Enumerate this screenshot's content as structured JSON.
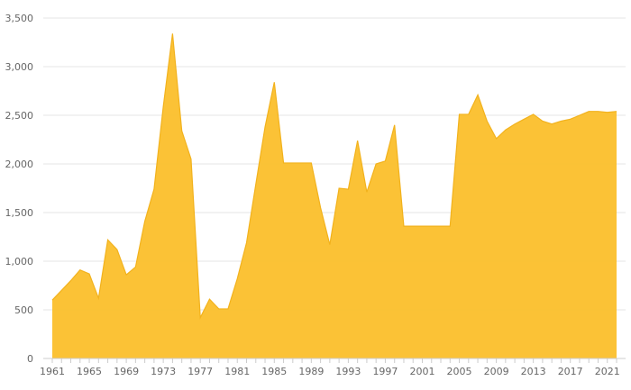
{
  "colors": {
    "area_fill": "#FBBF2B",
    "area_stroke": "#F2B21D",
    "grid": "#e6e6e6",
    "axis": "#cccccc",
    "tick_text": "#666666",
    "background": "#ffffff"
  },
  "chart_data": {
    "type": "area",
    "title": "",
    "xlabel": "",
    "ylabel": "",
    "grid": true,
    "legend": "none",
    "xlim": [
      1961,
      2022
    ],
    "ylim": [
      0,
      3500
    ],
    "y_ticks": [
      0,
      500,
      1000,
      1500,
      2000,
      2500,
      3000,
      3500
    ],
    "y_tick_labels": [
      "0",
      "500",
      "1,000",
      "1,500",
      "2,000",
      "2,500",
      "3,000",
      "3,500"
    ],
    "x_ticks": [
      1961,
      1965,
      1969,
      1973,
      1977,
      1981,
      1985,
      1989,
      1993,
      1997,
      2001,
      2005,
      2009,
      2013,
      2017,
      2021
    ],
    "x_tick_labels": [
      "1961",
      "1965",
      "1969",
      "1973",
      "1977",
      "1981",
      "1985",
      "1989",
      "1993",
      "1997",
      "2001",
      "2005",
      "2009",
      "2013",
      "2017",
      "2021"
    ],
    "series": [
      {
        "x": [
          1961,
          1962,
          1963,
          1964,
          1965,
          1966,
          1967,
          1968,
          1969,
          1970,
          1971,
          1972,
          1973,
          1974,
          1975,
          1976,
          1977,
          1978,
          1979,
          1980,
          1981,
          1982,
          1983,
          1984,
          1985,
          1986,
          1987,
          1988,
          1989,
          1990,
          1991,
          1992,
          1993,
          1994,
          1995,
          1996,
          1997,
          1998,
          1999,
          2000,
          2001,
          2002,
          2003,
          2004,
          2005,
          2006,
          2007,
          2008,
          2009,
          2010,
          2011,
          2012,
          2013,
          2014,
          2015,
          2016,
          2017,
          2018,
          2019,
          2020,
          2021,
          2022
        ],
        "values": [
          600,
          700,
          800,
          910,
          870,
          620,
          1220,
          1120,
          860,
          940,
          1410,
          1740,
          2590,
          3340,
          2340,
          2050,
          420,
          610,
          510,
          510,
          820,
          1190,
          1790,
          2380,
          2840,
          2010,
          2010,
          2010,
          2010,
          1550,
          1170,
          1750,
          1740,
          2240,
          1710,
          2000,
          2030,
          2400,
          1360,
          1360,
          1360,
          1360,
          1360,
          1360,
          2510,
          2510,
          2710,
          2440,
          2260,
          2350,
          2410,
          2460,
          2510,
          2440,
          2410,
          2440,
          2460,
          2500,
          2540,
          2540,
          2530,
          2540
        ]
      }
    ]
  }
}
